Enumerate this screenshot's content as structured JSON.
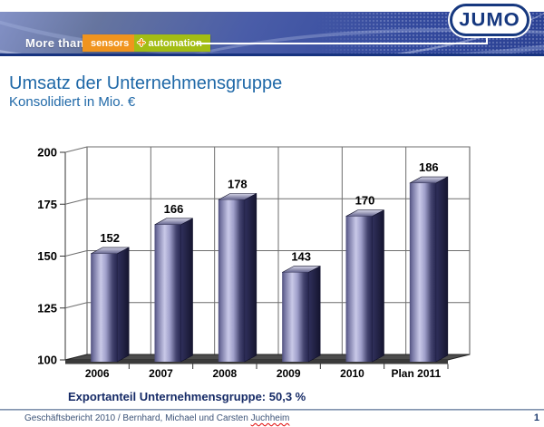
{
  "header": {
    "logo": "JUMO",
    "tagline": "More than",
    "badge": {
      "sensors": "sensors",
      "plus": "+",
      "automation": "automation"
    }
  },
  "title": "Umsatz der Unternehmensgruppe",
  "subtitle": "Konsolidiert in Mio. €",
  "chart_data": {
    "type": "bar",
    "variant": "3d-column",
    "title": "Umsatz der Unternehmensgruppe",
    "subtitle": "Konsolidiert in Mio. €",
    "unit": "Mio. €",
    "categories": [
      "2006",
      "2007",
      "2008",
      "2009",
      "2010",
      "Plan 2011"
    ],
    "values": [
      152,
      166,
      178,
      143,
      170,
      186
    ],
    "ylim": [
      100,
      200
    ],
    "yticks": [
      100,
      125,
      150,
      175,
      200
    ],
    "grid": true,
    "legend": false,
    "data_labels": true,
    "colors": {
      "bar_edge": "#50507e",
      "bar_light": "#c9c9e8",
      "bar_dark": "#262650",
      "bar_side_dark": "#15152f",
      "bar_side_light": "#30305c",
      "bar_top_light": "#d6d6e8",
      "bar_top_dark": "#60608a",
      "floor": "#4c4c4c",
      "floor_edge": "#3a3a3a",
      "wall": "#ffffff",
      "gridline": "#6e6e6e",
      "axis": "#333333",
      "label": "#000000"
    }
  },
  "callout": "Exportanteil Unternehmensgruppe: 50,3 %",
  "footer": {
    "text": "Geschäftsbericht 2010 / Bernhard, Michael und Carsten ",
    "author_name": "Juchheim",
    "page": "1"
  },
  "colors": {
    "banner_edge": "#17337f",
    "navy": "#16387f",
    "orange": "#f0941e",
    "green": "#a3bd14",
    "title_blue": "#2069a8",
    "callout_navy": "#152a66",
    "footer_text": "#3d5478"
  }
}
